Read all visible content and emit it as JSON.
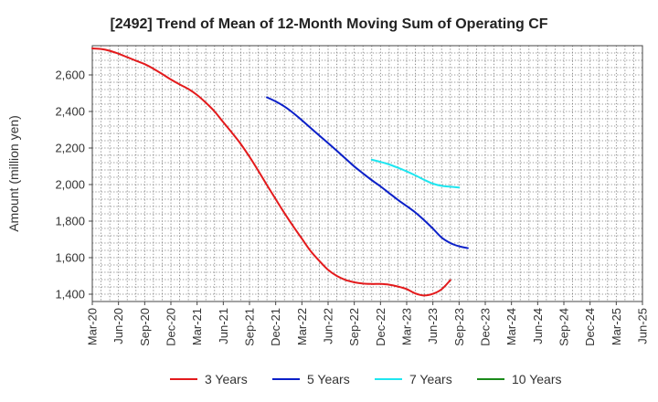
{
  "chart_data": {
    "type": "line",
    "title": "[2492]  Trend of Mean of 12-Month Moving Sum of Operating CF",
    "xlabel": "",
    "ylabel": "Amount (million yen)",
    "x_ticks": [
      "Mar-20",
      "Jun-20",
      "Sep-20",
      "Dec-20",
      "Mar-21",
      "Jun-21",
      "Sep-21",
      "Dec-21",
      "Mar-22",
      "Jun-22",
      "Sep-22",
      "Dec-22",
      "Mar-23",
      "Jun-23",
      "Sep-23",
      "Dec-23",
      "Mar-24",
      "Jun-24",
      "Sep-24",
      "Dec-24",
      "Mar-25",
      "Jun-25"
    ],
    "y_ticks": [
      1400,
      1600,
      1800,
      2000,
      2200,
      2400,
      2600
    ],
    "y_tick_labels": [
      "1,400",
      "1,600",
      "1,800",
      "2,000",
      "2,200",
      "2,400",
      "2,600"
    ],
    "ylim": [
      1360,
      2760
    ],
    "grid": true,
    "legend_position": "bottom",
    "series": [
      {
        "name": "3 Years",
        "color": "#e31a1c",
        "start_index": 0,
        "values": [
          2745,
          2742,
          2732,
          2716,
          2697,
          2678,
          2659,
          2634,
          2605,
          2575,
          2548,
          2523,
          2490,
          2448,
          2400,
          2341,
          2283,
          2222,
          2152,
          2076,
          1997,
          1920,
          1844,
          1772,
          1704,
          1636,
          1582,
          1533,
          1500,
          1478,
          1465,
          1458,
          1456,
          1456,
          1452,
          1442,
          1428,
          1404,
          1393,
          1402,
          1427,
          1477
        ]
      },
      {
        "name": "5 Years",
        "color": "#0a1fc8",
        "start_index": 20,
        "values": [
          2477,
          2455,
          2427,
          2392,
          2352,
          2310,
          2268,
          2227,
          2185,
          2142,
          2099,
          2061,
          2024,
          1990,
          1953,
          1916,
          1882,
          1847,
          1805,
          1759,
          1710,
          1680,
          1662,
          1652
        ]
      },
      {
        "name": "7 Years",
        "color": "#1ee6f0",
        "start_index": 32,
        "values": [
          2136,
          2124,
          2110,
          2092,
          2072,
          2050,
          2026,
          2005,
          1993,
          1988,
          1984
        ]
      },
      {
        "name": "10 Years",
        "color": "#1a8a1a",
        "start_index": 0,
        "values": []
      }
    ]
  }
}
